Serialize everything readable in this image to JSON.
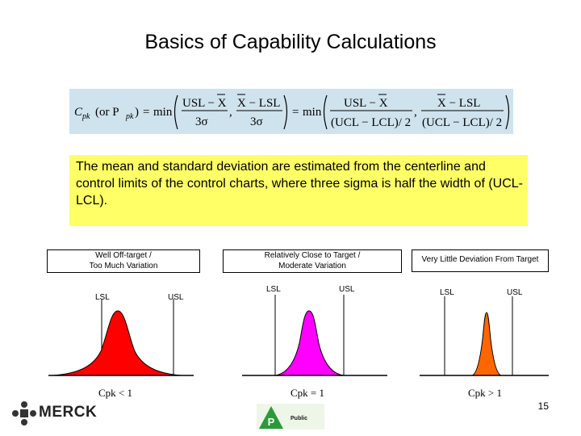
{
  "slide": {
    "title": "Basics of Capability Calculations",
    "formula": {
      "lhs_c": "C",
      "lhs_pk": "pk",
      "lhs_or": "(or P",
      "lhs_pk2": "pk",
      "lhs_close": ")",
      "equals": "=",
      "min": "min",
      "term1_num": "USL − X",
      "term1_den": "3σ",
      "comma": ",",
      "term2_num": "X − LSL",
      "term2_den": "3σ",
      "term3_num": "USL − X",
      "term3_den": "(UCL − LCL)/ 2",
      "term4_num": "X − LSL",
      "term4_den": "(UCL − LCL)/ 2"
    },
    "note": "The mean and standard deviation are estimated from the centerline and control limits of the control charts, where three sigma is half the width of (UCL-LCL).",
    "panels": [
      {
        "label_line1": "Well Off-target /",
        "label_line2": "Too Much Variation",
        "lsl": "LSL",
        "usl": "USL",
        "cpk": "Cpk < 1",
        "color": "#ff0000"
      },
      {
        "label_line1": "Relatively Close to Target /",
        "label_line2": "Moderate Variation",
        "lsl": "LSL",
        "usl": "USL",
        "cpk": "Cpk = 1",
        "color": "#ff00ff"
      },
      {
        "label_line1": "Very Little Deviation From Target",
        "label_line2": "",
        "lsl": "LSL",
        "usl": "USL",
        "cpk": "Cpk > 1",
        "color": "#ff6600"
      }
    ],
    "page_number": "15",
    "logo": {
      "brand": "MERCK",
      "badge_letter": "P",
      "badge_text": "Public",
      "badge_color": "#2a9a3a"
    }
  }
}
